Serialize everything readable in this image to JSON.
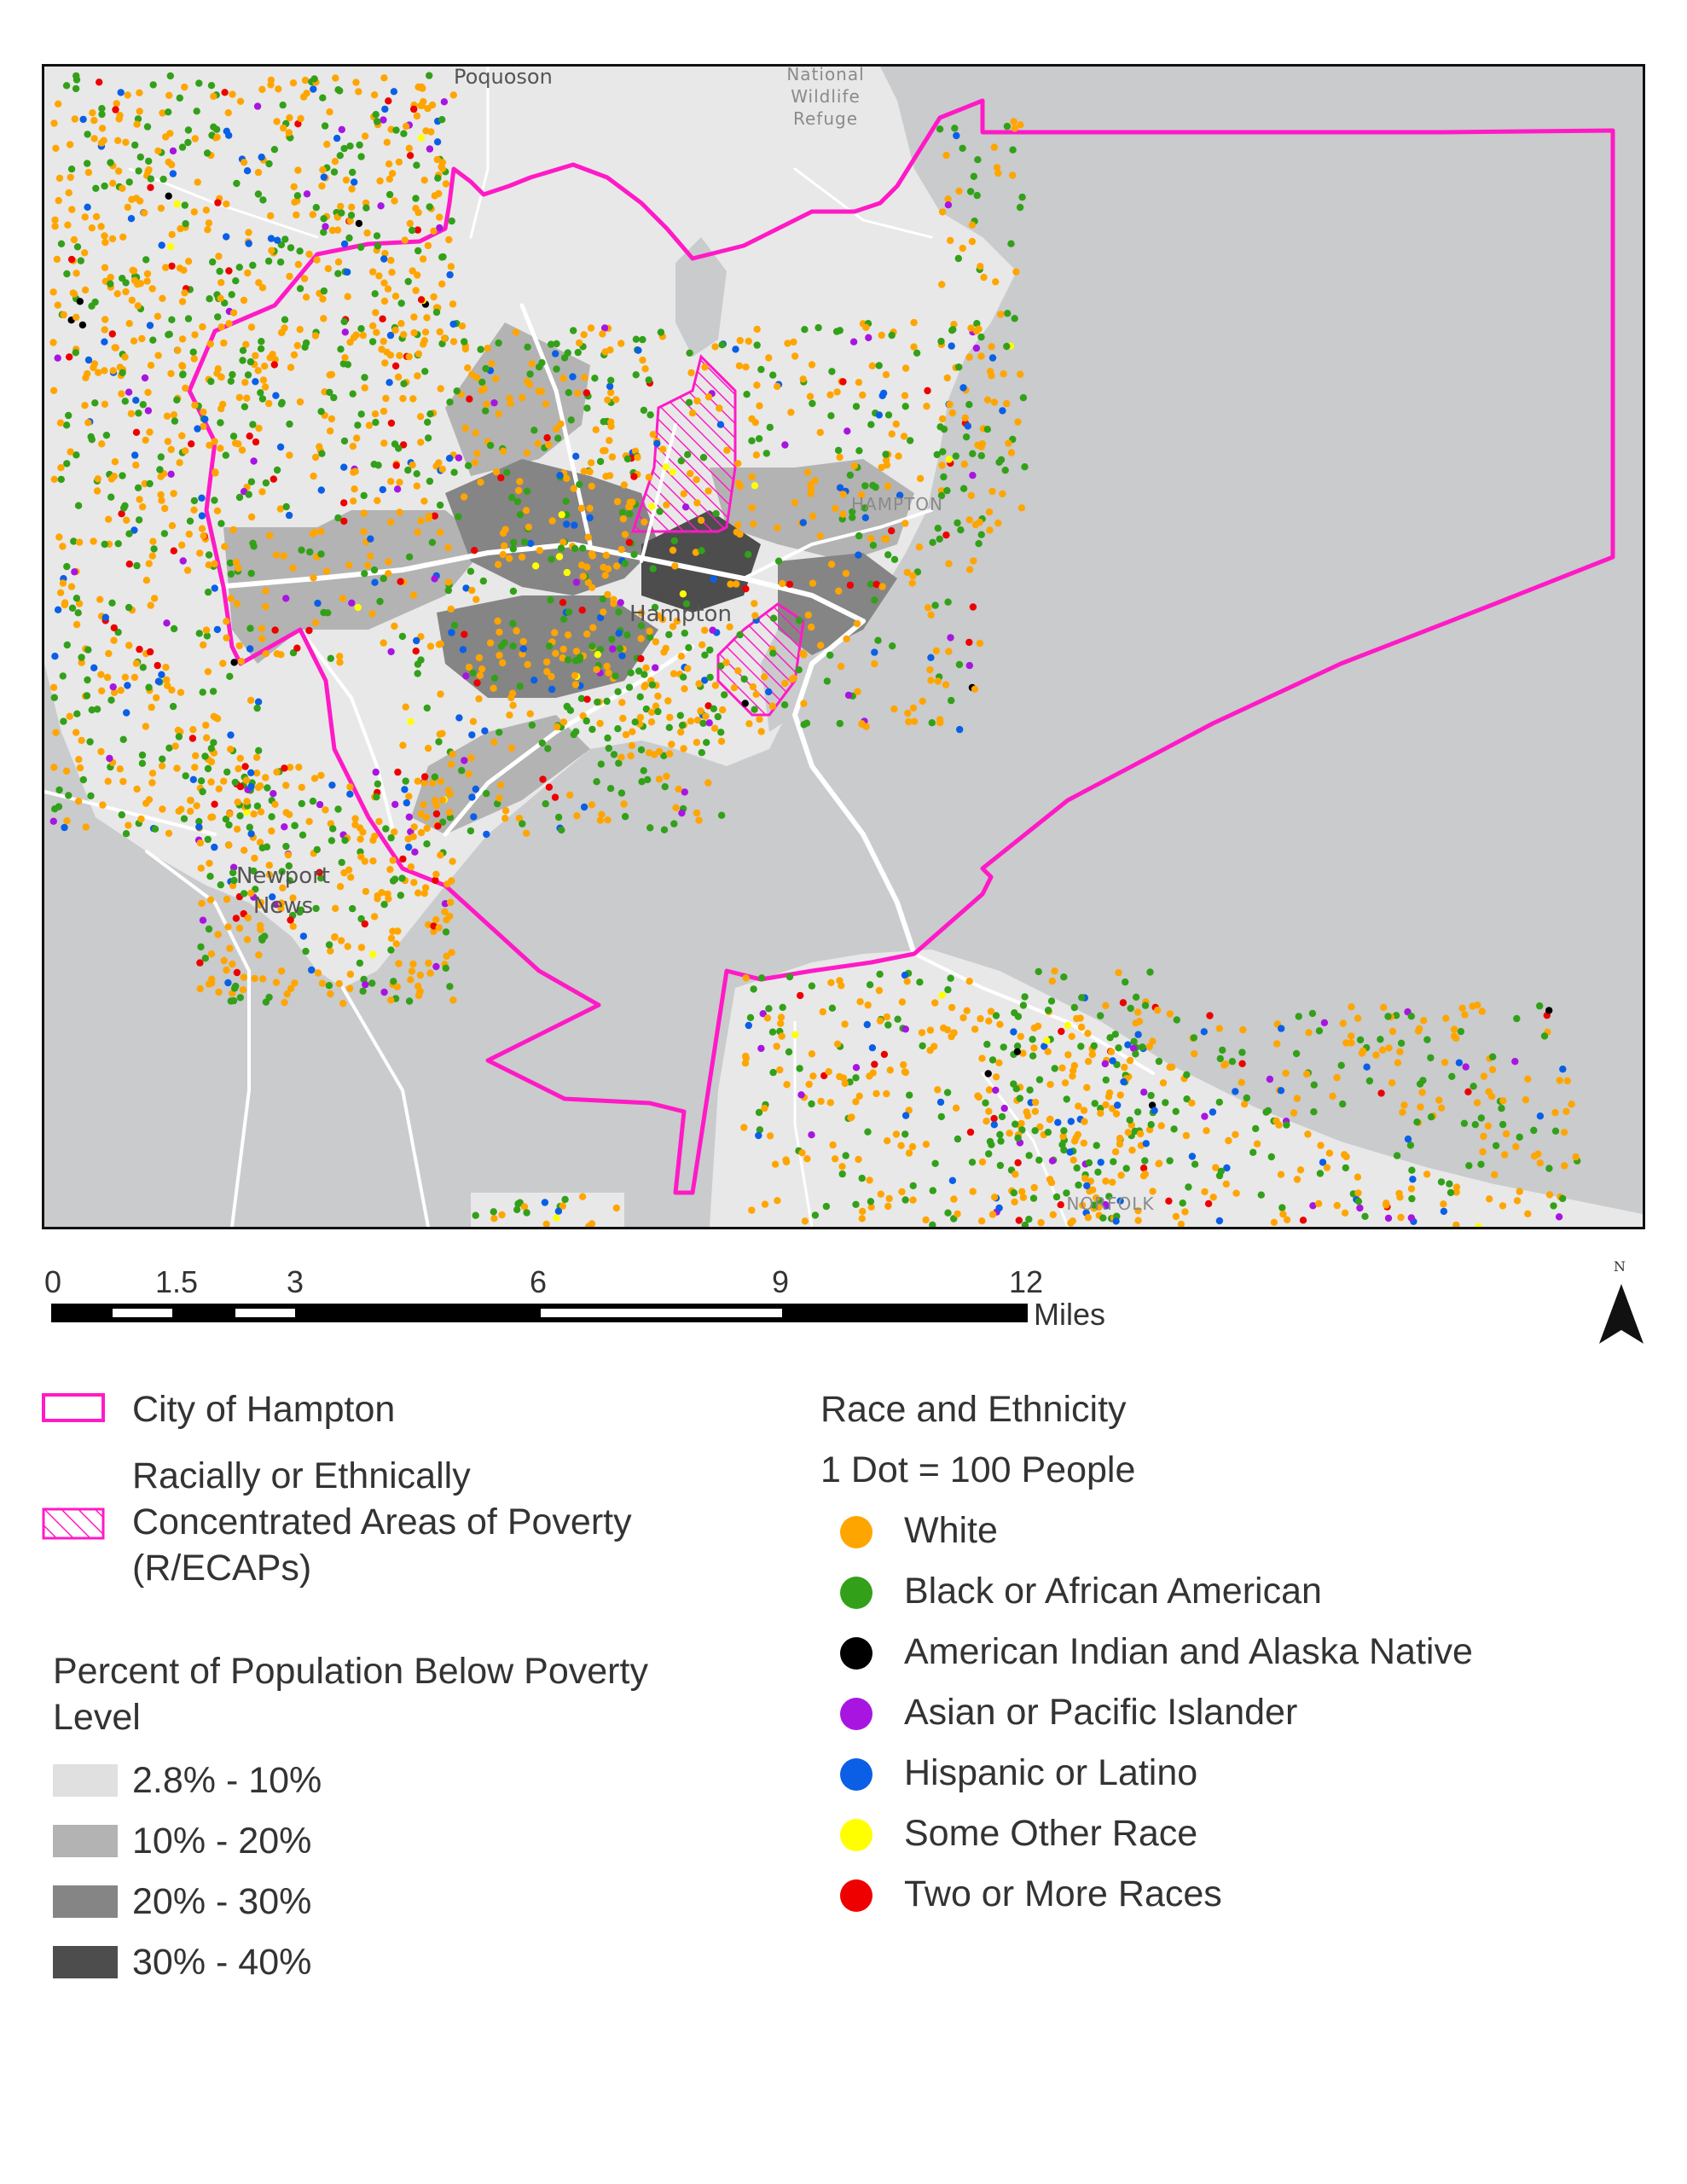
{
  "map": {
    "places": {
      "poquoson": "Poquoson",
      "refuge_line1": "National",
      "refuge_line2": "Wildlife",
      "refuge_line3": "Refuge",
      "hampton_area": "HAMPTON",
      "hampton": "Hampton",
      "newport_line1": "Newport",
      "newport_line2": "News",
      "norfolk": "NORFOLK"
    },
    "colors": {
      "water": "#c9cbcd",
      "land": "#e8e8e8",
      "boundary": "#ff1ac6"
    }
  },
  "scale": {
    "ticks": [
      "0",
      "1.5",
      "3",
      "6",
      "9",
      "12"
    ],
    "unit": "Miles"
  },
  "north": {
    "label": "N"
  },
  "legend": {
    "boundary_label": "City of Hampton",
    "recap_line1": "Racially or Ethnically",
    "recap_line2": "Concentrated Areas of Poverty",
    "recap_line3": "(R/ECAPs)",
    "poverty_title_line1": "Percent of Population Below Poverty",
    "poverty_title_line2": "Level",
    "poverty_classes": [
      {
        "label": "2.8% - 10%",
        "color": "#e0e0e0"
      },
      {
        "label": "10% - 20%",
        "color": "#b3b3b3"
      },
      {
        "label": "20% - 30%",
        "color": "#858585"
      },
      {
        "label": "30% - 40%",
        "color": "#4d4d4d"
      }
    ],
    "race_title": "Race and Ethnicity",
    "dot_note": "1 Dot = 100 People",
    "race_classes": [
      {
        "label": "White",
        "color": "#ffa500"
      },
      {
        "label": "Black or African American",
        "color": "#33a019"
      },
      {
        "label": "American Indian and Alaska Native",
        "color": "#000000"
      },
      {
        "label": "Asian or Pacific Islander",
        "color": "#a815e0"
      },
      {
        "label": "Hispanic or Latino",
        "color": "#0a5fe6"
      },
      {
        "label": "Some Other Race",
        "color": "#ffff00"
      },
      {
        "label": "Two or More Races",
        "color": "#ee0000"
      }
    ]
  }
}
